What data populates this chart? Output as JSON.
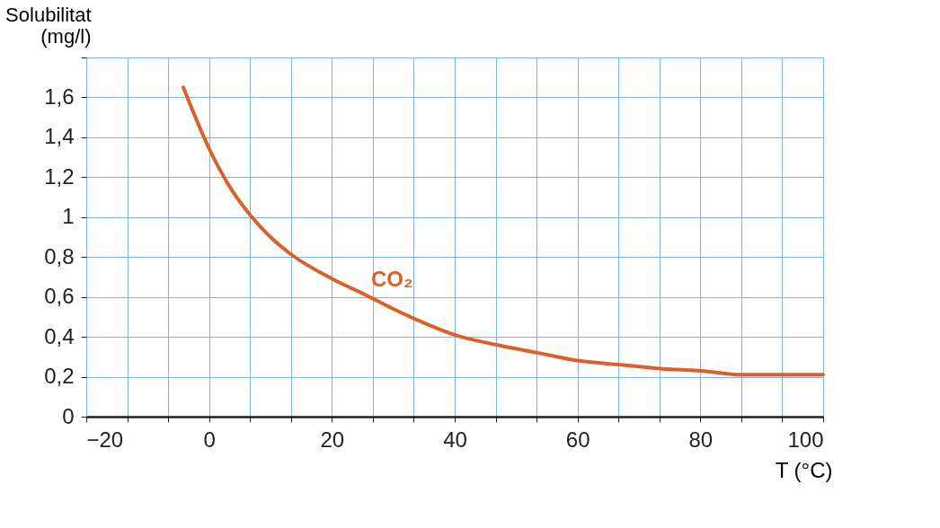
{
  "chart_data": {
    "type": "line",
    "ylabel": "Solubilitat\n(mg/l)",
    "xlabel": "T (°C)",
    "x": [
      -4.2,
      -0.1,
      3,
      6.7,
      10,
      13.5,
      20.1,
      25.5,
      30,
      35,
      40,
      46.8,
      53.5,
      60.3,
      67.1,
      73.8,
      80.1,
      86.8,
      93,
      100
    ],
    "series": [
      {
        "name": "CO₂",
        "color": "#d8622a",
        "values": [
          1.65,
          1.35,
          1.17,
          1.01,
          0.9,
          0.81,
          0.69,
          0.61,
          0.54,
          0.47,
          0.41,
          0.36,
          0.32,
          0.28,
          0.26,
          0.24,
          0.23,
          0.21,
          0.21,
          0.21
        ]
      }
    ],
    "xlim": [
      -20,
      100
    ],
    "ylim": [
      0,
      1.8
    ],
    "xticks": [
      {
        "value": -20,
        "label": "−20"
      },
      {
        "value": -13.333,
        "label": null
      },
      {
        "value": -6.667,
        "label": null
      },
      0,
      {
        "value": 6.667,
        "label": null
      },
      {
        "value": 13.333,
        "label": null
      },
      20,
      {
        "value": 26.667,
        "label": null
      },
      {
        "value": 33.333,
        "label": null
      },
      40,
      {
        "value": 46.667,
        "label": null
      },
      {
        "value": 53.333,
        "label": null
      },
      60,
      {
        "value": 66.667,
        "label": null
      },
      {
        "value": 73.333,
        "label": null
      },
      80,
      {
        "value": 86.667,
        "label": null
      },
      {
        "value": 93.333,
        "label": null
      },
      100
    ],
    "yticks": [
      0,
      {
        "value": 0.2,
        "label": "0,2"
      },
      {
        "value": 0.4,
        "label": "0,4"
      },
      {
        "value": 0.6,
        "label": "0,6"
      },
      {
        "value": 0.8,
        "label": "0,8"
      },
      1,
      {
        "value": 1.2,
        "label": "1,2"
      },
      {
        "value": 1.4,
        "label": "1,4"
      },
      {
        "value": 1.6,
        "label": "1,6"
      },
      {
        "value": 1.8,
        "label": null
      }
    ],
    "grid": true,
    "marker": "none",
    "line_style": "solid"
  }
}
